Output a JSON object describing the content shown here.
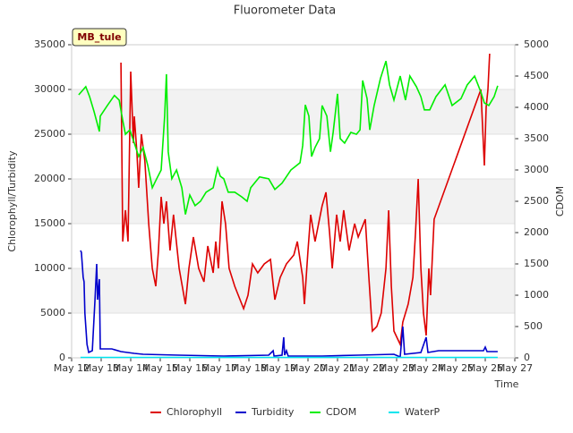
{
  "chart_data": {
    "type": "line",
    "title": "Fluorometer Data",
    "annotation": "MB_tule",
    "x_label": "Time",
    "y_label": "Chlorophyll/Turbidity",
    "y2_label": "CDOM",
    "xlim": [
      12,
      27
    ],
    "xticks": [
      {
        "value": 12,
        "label": "May 12"
      },
      {
        "value": 13,
        "label": "May 13"
      },
      {
        "value": 14,
        "label": "May 14"
      },
      {
        "value": 15,
        "label": "May 15"
      },
      {
        "value": 16,
        "label": "May 16"
      },
      {
        "value": 17,
        "label": "May 17"
      },
      {
        "value": 18,
        "label": "May 18"
      },
      {
        "value": 19,
        "label": "May 19"
      },
      {
        "value": 20,
        "label": "May 20"
      },
      {
        "value": 21,
        "label": "May 21"
      },
      {
        "value": 22,
        "label": "May 22"
      },
      {
        "value": 23,
        "label": "May 23"
      },
      {
        "value": 24,
        "label": "May 24"
      },
      {
        "value": 25,
        "label": "May 25"
      },
      {
        "value": 26,
        "label": "May 26"
      },
      {
        "value": 27,
        "label": "May 27"
      }
    ],
    "ylim": [
      0,
      35000
    ],
    "yticks": [
      0,
      5000,
      10000,
      15000,
      20000,
      25000,
      30000,
      35000
    ],
    "y2lim": [
      0,
      5000
    ],
    "y2ticks": [
      0,
      500,
      1000,
      1500,
      2000,
      2500,
      3000,
      3500,
      4000,
      4500,
      5000
    ],
    "grid": true,
    "legend": "bottom",
    "series": [
      {
        "name": "Chlorophyll",
        "color": "#dd0000",
        "x": [
          13.67,
          13.73,
          13.82,
          13.91,
          14.0,
          14.09,
          14.12,
          14.21,
          14.27,
          14.36,
          14.48,
          14.61,
          14.73,
          14.85,
          14.94,
          15.03,
          15.12,
          15.21,
          15.33,
          15.45,
          15.64,
          15.85,
          15.97,
          16.12,
          16.3,
          16.48,
          16.61,
          16.79,
          16.88,
          16.97,
          17.09,
          17.21,
          17.33,
          17.52,
          17.76,
          17.82,
          17.97,
          18.12,
          18.3,
          18.52,
          18.73,
          18.88,
          19.06,
          19.27,
          19.52,
          19.64,
          19.82,
          19.88,
          20.0,
          20.09,
          20.24,
          20.48,
          20.61,
          20.73,
          20.82,
          20.97,
          21.09,
          21.21,
          21.39,
          21.58,
          21.7,
          21.94,
          22.06,
          22.18,
          22.33,
          22.48,
          22.64,
          22.73,
          22.82,
          22.91,
          23.12,
          23.21,
          23.39,
          23.55,
          23.64,
          23.73,
          23.82,
          23.91,
          24.0,
          24.09,
          24.15,
          24.27,
          25.85,
          25.97,
          26.03,
          26.09,
          26.15
        ],
        "values": [
          33000,
          13000,
          16500,
          13000,
          32000,
          24000,
          27000,
          23000,
          19000,
          25000,
          22000,
          15000,
          10000,
          8000,
          12000,
          18000,
          15000,
          17500,
          12000,
          16000,
          10000,
          6000,
          10000,
          13500,
          10000,
          8500,
          12500,
          9500,
          13000,
          10000,
          17500,
          15000,
          10000,
          8000,
          6000,
          5500,
          7000,
          10500,
          9500,
          10500,
          11000,
          6500,
          9000,
          10500,
          11500,
          13000,
          9000,
          6000,
          12000,
          16000,
          13000,
          17000,
          18500,
          14000,
          10000,
          16000,
          13000,
          16500,
          12000,
          15000,
          13500,
          15500,
          9000,
          3000,
          3500,
          5000,
          10000,
          16500,
          8000,
          3000,
          1500,
          4000,
          6000,
          9000,
          14000,
          20000,
          10000,
          5000,
          2500,
          10000,
          7000,
          15500,
          30000,
          21500,
          28000,
          30000,
          34000
        ]
      },
      {
        "name": "Turbidity",
        "color": "#0000cc",
        "x": [
          12.3,
          12.33,
          12.39,
          12.42,
          12.45,
          12.52,
          12.58,
          12.7,
          12.79,
          12.85,
          12.88,
          12.94,
          12.97,
          13.36,
          13.67,
          14.12,
          14.42,
          15.64,
          17.15,
          18.67,
          18.82,
          18.85,
          19.12,
          19.18,
          19.21,
          19.27,
          19.33,
          20.48,
          21.7,
          22.91,
          23.12,
          23.21,
          23.27,
          23.82,
          24.0,
          24.06,
          24.42,
          25.94,
          26.0,
          26.06,
          26.42
        ],
        "values": [
          12000,
          11800,
          9000,
          8500,
          5000,
          1500,
          600,
          800,
          6500,
          10500,
          6500,
          8800,
          1000,
          1000,
          700,
          500,
          400,
          300,
          200,
          300,
          800,
          200,
          300,
          2300,
          300,
          800,
          200,
          200,
          300,
          400,
          100,
          3500,
          400,
          600,
          2300,
          600,
          800,
          800,
          1200,
          700,
          700
        ]
      },
      {
        "name": "CDOM",
        "color": "#00ee00",
        "axis": "y2",
        "x": [
          12.24,
          12.48,
          12.61,
          12.76,
          12.94,
          12.97,
          13.21,
          13.45,
          13.61,
          13.73,
          13.82,
          13.97,
          14.12,
          14.27,
          14.42,
          14.58,
          14.73,
          14.88,
          15.03,
          15.15,
          15.21,
          15.27,
          15.39,
          15.55,
          15.73,
          15.85,
          16.0,
          16.18,
          16.36,
          16.55,
          16.79,
          16.94,
          17.03,
          17.15,
          17.3,
          17.52,
          17.76,
          17.94,
          18.06,
          18.36,
          18.67,
          18.88,
          19.12,
          19.42,
          19.73,
          19.82,
          19.91,
          20.03,
          20.12,
          20.24,
          20.39,
          20.48,
          20.64,
          20.76,
          20.85,
          21.0,
          21.09,
          21.24,
          21.45,
          21.64,
          21.76,
          21.85,
          22.0,
          22.09,
          22.24,
          22.45,
          22.64,
          22.76,
          22.91,
          23.12,
          23.3,
          23.45,
          23.67,
          23.82,
          23.94,
          24.12,
          24.33,
          24.64,
          24.88,
          25.18,
          25.39,
          25.64,
          25.85,
          25.97,
          26.12,
          26.3,
          26.42
        ],
        "values": [
          4200,
          4330,
          4170,
          3930,
          3615,
          3860,
          4030,
          4190,
          4115,
          3790,
          3570,
          3640,
          3430,
          3215,
          3360,
          3070,
          2715,
          2860,
          3000,
          3860,
          4530,
          3290,
          2860,
          3000,
          2715,
          2290,
          2600,
          2430,
          2500,
          2645,
          2715,
          3030,
          2900,
          2860,
          2645,
          2645,
          2570,
          2500,
          2715,
          2890,
          2860,
          2690,
          2790,
          3000,
          3115,
          3390,
          4040,
          3860,
          3215,
          3360,
          3500,
          4030,
          3860,
          3290,
          3600,
          4215,
          3500,
          3430,
          3600,
          3570,
          3640,
          4430,
          4140,
          3640,
          4030,
          4460,
          4740,
          4360,
          4115,
          4500,
          4115,
          4500,
          4330,
          4170,
          3960,
          3960,
          4170,
          4360,
          4030,
          4140,
          4360,
          4500,
          4245,
          4070,
          4030,
          4170,
          4345
        ]
      },
      {
        "name": "WaterP",
        "color": "#00e5ee",
        "x": [
          12.3,
          26.42
        ],
        "values": [
          50,
          50
        ]
      }
    ]
  }
}
